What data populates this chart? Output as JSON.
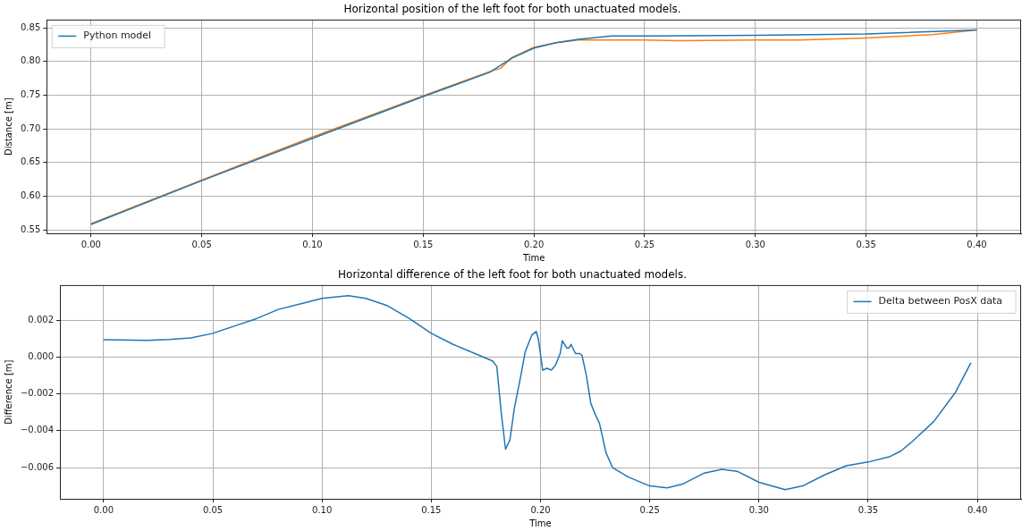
{
  "chart_data": [
    {
      "type": "line",
      "title": "Horizontal position of the left foot for both unactuated models.",
      "xlabel": "Time",
      "ylabel": "Distance [m]",
      "xlim": [
        -0.02,
        0.42
      ],
      "ylim": [
        0.5448,
        0.8617
      ],
      "xticks": [
        {
          "value": 0,
          "label": "0.00"
        },
        {
          "value": 0.05,
          "label": "0.05"
        },
        {
          "value": 0.1,
          "label": "0.10"
        },
        {
          "value": 0.15,
          "label": "0.15"
        },
        {
          "value": 0.2,
          "label": "0.20"
        },
        {
          "value": 0.25,
          "label": "0.25"
        },
        {
          "value": 0.3,
          "label": "0.30"
        },
        {
          "value": 0.35,
          "label": "0.35"
        },
        {
          "value": 0.4,
          "label": "0.40"
        }
      ],
      "yticks": [
        {
          "value": 0.55,
          "label": "0.55"
        },
        {
          "value": 0.6,
          "label": "0.60"
        },
        {
          "value": 0.65,
          "label": "0.65"
        },
        {
          "value": 0.7,
          "label": "0.70"
        },
        {
          "value": 0.75,
          "label": "0.75"
        },
        {
          "value": 0.8,
          "label": "0.80"
        },
        {
          "value": 0.85,
          "label": "0.85"
        }
      ],
      "grid": true,
      "legend": "top left",
      "series": [
        {
          "name": "Python model",
          "color": "#1f77b4",
          "x": [
            0,
            0.05,
            0.1,
            0.15,
            0.18,
            0.19,
            0.2,
            0.21,
            0.22,
            0.235,
            0.25,
            0.3,
            0.35,
            0.4
          ],
          "values": [
            0.558,
            0.623,
            0.686,
            0.748,
            0.784,
            0.805,
            0.82,
            0.828,
            0.833,
            0.838,
            0.838,
            0.839,
            0.841,
            0.847
          ]
        },
        {
          "color": "#ff7f0e",
          "x": [
            0,
            0.05,
            0.1,
            0.15,
            0.18,
            0.185,
            0.19,
            0.2,
            0.21,
            0.22,
            0.25,
            0.265,
            0.3,
            0.32,
            0.35,
            0.38,
            0.4
          ],
          "values": [
            0.559,
            0.624,
            0.688,
            0.749,
            0.785,
            0.79,
            0.806,
            0.821,
            0.828,
            0.832,
            0.832,
            0.831,
            0.832,
            0.832,
            0.835,
            0.84,
            0.847
          ]
        }
      ]
    },
    {
      "type": "line",
      "title": "Horizontal difference of the left foot for both unactuated models.",
      "xlabel": "Time",
      "ylabel": "Difference [m]",
      "xlim": [
        -0.02,
        0.42
      ],
      "ylim": [
        -0.0077,
        0.0039
      ],
      "xticks": [
        {
          "value": 0,
          "label": "0.00"
        },
        {
          "value": 0.05,
          "label": "0.05"
        },
        {
          "value": 0.1,
          "label": "0.10"
        },
        {
          "value": 0.15,
          "label": "0.15"
        },
        {
          "value": 0.2,
          "label": "0.20"
        },
        {
          "value": 0.25,
          "label": "0.25"
        },
        {
          "value": 0.3,
          "label": "0.30"
        },
        {
          "value": 0.35,
          "label": "0.35"
        },
        {
          "value": 0.4,
          "label": "0.40"
        }
      ],
      "yticks": [
        {
          "value": -0.006,
          "label": "−0.006"
        },
        {
          "value": -0.004,
          "label": "−0.004"
        },
        {
          "value": -0.002,
          "label": "−0.002"
        },
        {
          "value": 0,
          "label": "0.000"
        },
        {
          "value": 0.002,
          "label": "0.002"
        }
      ],
      "grid": true,
      "legend": "top right",
      "series": [
        {
          "name": "Delta between PosX data",
          "color": "#1f77b4",
          "x": [
            0,
            0.02,
            0.03,
            0.04,
            0.05,
            0.06,
            0.07,
            0.08,
            0.09,
            0.1,
            0.112,
            0.12,
            0.13,
            0.14,
            0.15,
            0.16,
            0.17,
            0.178,
            0.18,
            0.182,
            0.184,
            0.186,
            0.188,
            0.191,
            0.193,
            0.196,
            0.198,
            0.199,
            0.201,
            0.203,
            0.205,
            0.207,
            0.209,
            0.21,
            0.212,
            0.213,
            0.214,
            0.216,
            0.218,
            0.219,
            0.221,
            0.223,
            0.225,
            0.227,
            0.23,
            0.233,
            0.24,
            0.25,
            0.258,
            0.265,
            0.275,
            0.283,
            0.29,
            0.3,
            0.312,
            0.32,
            0.33,
            0.34,
            0.35,
            0.36,
            0.365,
            0.37,
            0.38,
            0.39,
            0.397
          ],
          "values": [
            0.00095,
            0.00092,
            0.00097,
            0.00105,
            0.0013,
            0.0017,
            0.0021,
            0.0026,
            0.0029,
            0.0032,
            0.00335,
            0.0032,
            0.0028,
            0.0021,
            0.0013,
            0.0007,
            0.0002,
            -0.0002,
            -0.0005,
            -0.003,
            -0.005,
            -0.0045,
            -0.0028,
            -0.001,
            0.0003,
            0.0012,
            0.0014,
            0.001,
            -0.0007,
            -0.0006,
            -0.0007,
            -0.0004,
            0.0002,
            0.0009,
            0.0005,
            0.0005,
            0.0007,
            0.0002,
            0.0002,
            0.0001,
            -0.001,
            -0.0025,
            -0.0031,
            -0.0036,
            -0.0052,
            -0.006,
            -0.0065,
            -0.007,
            -0.0071,
            -0.0069,
            -0.0063,
            -0.0061,
            -0.0062,
            -0.0068,
            -0.0072,
            -0.007,
            -0.0064,
            -0.0059,
            -0.0057,
            -0.0054,
            -0.0051,
            -0.0046,
            -0.0035,
            -0.0019,
            -0.0003
          ]
        }
      ]
    }
  ]
}
